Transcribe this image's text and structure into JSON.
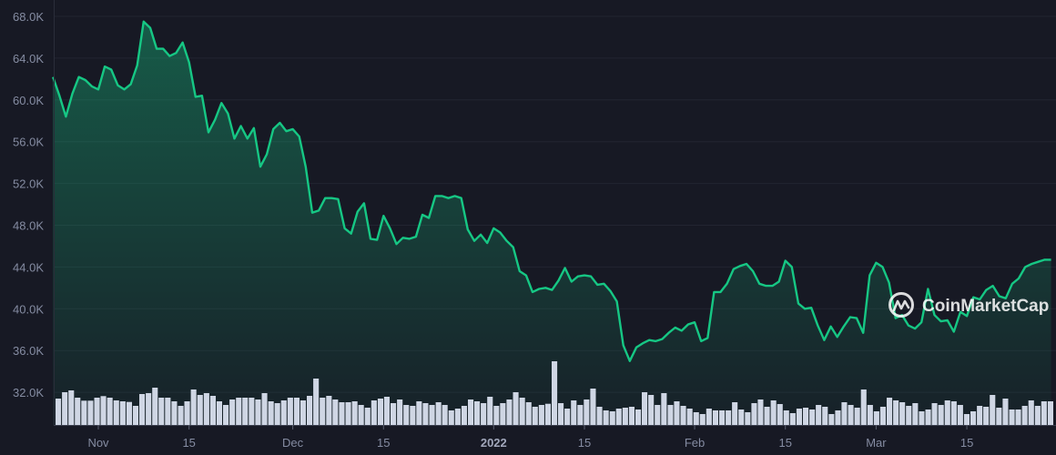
{
  "chart_data": {
    "type": "area",
    "title": "",
    "xlabel": "",
    "ylabel": "",
    "ylim": [
      30000,
      70000
    ],
    "grid": true,
    "legend": "none",
    "y_ticks": [
      "32.0K",
      "36.0K",
      "40.0K",
      "44.0K",
      "48.0K",
      "52.0K",
      "56.0K",
      "60.0K",
      "64.0K",
      "68.0K"
    ],
    "y_tick_values": [
      32000,
      36000,
      40000,
      44000,
      48000,
      52000,
      56000,
      60000,
      64000,
      68000
    ],
    "x_ticks": [
      {
        "label": "Nov",
        "date": "2021-11-01",
        "bold": false
      },
      {
        "label": "15",
        "date": "2021-11-15",
        "bold": false
      },
      {
        "label": "Dec",
        "date": "2021-12-01",
        "bold": false
      },
      {
        "label": "15",
        "date": "2021-12-15",
        "bold": false
      },
      {
        "label": "2022",
        "date": "2022-01-01",
        "bold": true
      },
      {
        "label": "15",
        "date": "2022-01-15",
        "bold": false
      },
      {
        "label": "Feb",
        "date": "2022-02-01",
        "bold": false
      },
      {
        "label": "15",
        "date": "2022-02-15",
        "bold": false
      },
      {
        "label": "Mar",
        "date": "2022-03-01",
        "bold": false
      },
      {
        "label": "15",
        "date": "2022-03-15",
        "bold": false
      }
    ],
    "x_range": [
      "2021-10-25",
      "2022-03-28"
    ],
    "price_k": [
      62.2,
      60.4,
      58.4,
      60.6,
      62.2,
      61.9,
      61.3,
      61.0,
      63.2,
      62.9,
      61.4,
      61.0,
      61.5,
      63.3,
      67.5,
      66.9,
      64.9,
      64.9,
      64.2,
      64.5,
      65.5,
      63.6,
      60.3,
      60.4,
      56.9,
      58.1,
      59.7,
      58.7,
      56.3,
      57.5,
      56.3,
      57.3,
      53.6,
      54.8,
      57.2,
      57.8,
      57.0,
      57.2,
      56.5,
      53.6,
      49.2,
      49.4,
      50.6,
      50.6,
      50.5,
      47.7,
      47.2,
      49.3,
      50.1,
      46.7,
      46.6,
      48.9,
      47.7,
      46.2,
      46.8,
      46.7,
      46.9,
      49.0,
      48.7,
      50.8,
      50.8,
      50.6,
      50.8,
      50.6,
      47.6,
      46.5,
      47.1,
      46.3,
      47.7,
      47.3,
      46.5,
      45.9,
      43.6,
      43.2,
      41.6,
      41.9,
      42.0,
      41.8,
      42.7,
      43.9,
      42.6,
      43.1,
      43.2,
      43.1,
      42.3,
      42.4,
      41.7,
      40.7,
      36.5,
      35.0,
      36.3,
      36.7,
      37.0,
      36.9,
      37.1,
      37.7,
      38.2,
      37.9,
      38.5,
      38.7,
      36.9,
      37.2,
      41.6,
      41.6,
      42.4,
      43.8,
      44.1,
      44.3,
      43.6,
      42.4,
      42.2,
      42.2,
      42.6,
      44.6,
      44.0,
      40.5,
      40.0,
      40.1,
      38.4,
      37.0,
      38.3,
      37.3,
      38.3,
      39.2,
      39.1,
      37.7,
      43.2,
      44.4,
      44.0,
      42.5,
      39.1,
      39.4,
      38.4,
      38.1,
      38.7,
      41.9,
      39.4,
      38.8,
      38.9,
      37.8,
      39.7,
      39.3,
      41.1,
      40.9,
      41.8,
      42.2,
      41.2,
      41.0,
      42.4,
      42.9,
      44.0,
      44.3,
      44.5,
      44.7,
      44.7
    ],
    "volume_relative": [
      87,
      108,
      114,
      90,
      80,
      80,
      90,
      95,
      90,
      81,
      78,
      76,
      63,
      102,
      105,
      123,
      90,
      90,
      78,
      63,
      78,
      117,
      99,
      105,
      96,
      78,
      66,
      84,
      90,
      90,
      90,
      84,
      105,
      78,
      72,
      81,
      90,
      90,
      81,
      96,
      153,
      90,
      96,
      84,
      75,
      75,
      78,
      66,
      57,
      81,
      87,
      93,
      72,
      84,
      66,
      63,
      78,
      72,
      66,
      75,
      66,
      48,
      54,
      63,
      84,
      78,
      72,
      93,
      63,
      72,
      84,
      108,
      90,
      75,
      60,
      66,
      70,
      210,
      72,
      54,
      81,
      66,
      84,
      120,
      60,
      48,
      45,
      54,
      57,
      60,
      51,
      108,
      99,
      66,
      105,
      66,
      78,
      63,
      54,
      42,
      36,
      54,
      48,
      48,
      48,
      75,
      51,
      42,
      72,
      84,
      60,
      81,
      69,
      48,
      39,
      54,
      57,
      51,
      66,
      60,
      36,
      48,
      75,
      66,
      57,
      117,
      66,
      45,
      60,
      90,
      81,
      75,
      63,
      72,
      45,
      51,
      72,
      66,
      81,
      78,
      66,
      36,
      45,
      63,
      60,
      99,
      57,
      87,
      51,
      51,
      63,
      81,
      63,
      78,
      78
    ]
  },
  "watermark": {
    "text": "CoinMarketCap"
  },
  "colors": {
    "background": "#171924",
    "line": "#16c784",
    "grid": "#222531",
    "volume": "#cfd6e4",
    "axis_text": "#858ca2"
  }
}
